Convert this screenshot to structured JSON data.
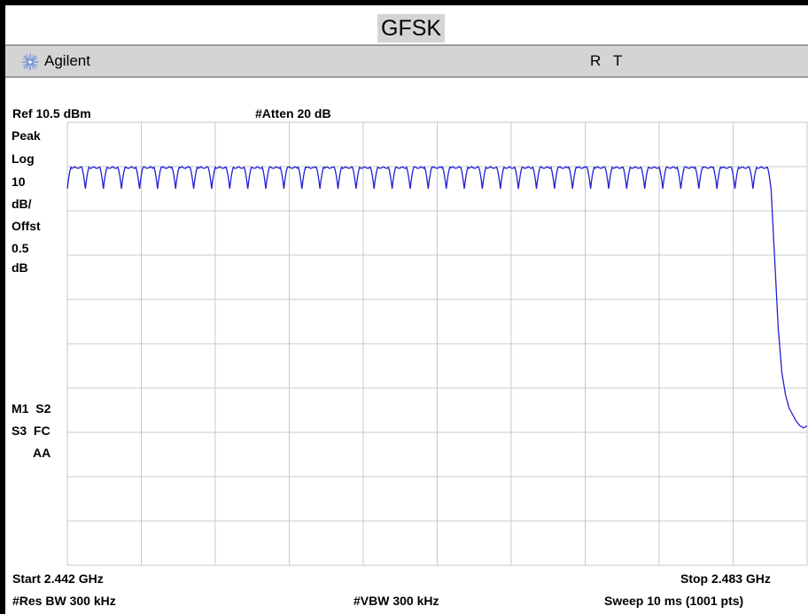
{
  "title": "GFSK",
  "brand": {
    "name": "Agilent",
    "icon": "agilent-spark-icon"
  },
  "status": {
    "r": "R",
    "t": "T"
  },
  "header": {
    "ref_level": "Ref 10.5 dBm",
    "atten": "#Atten 20 dB"
  },
  "left_panel": {
    "detector": "Peak",
    "scale_type": "Log",
    "scale_value": "10",
    "scale_unit": "dB/",
    "offset_label": "Offst",
    "offset_value": "0.5",
    "offset_unit": "dB",
    "line1": "M1  S2",
    "line2": "S3  FC",
    "line3": "AA"
  },
  "footer": {
    "start": "Start 2.442 GHz",
    "stop": "Stop 2.483 GHz",
    "res_bw": "#Res BW 300 kHz",
    "vbw": "#VBW 300 kHz",
    "sweep": "Sweep 10 ms (1001 pts)"
  },
  "colors": {
    "trace": "#1f1fd6",
    "grid": "#c8c8c8",
    "background": "#ffffff",
    "bar": "#d4d4d4"
  },
  "chart_data": {
    "type": "line",
    "title": "GFSK",
    "xlabel": "",
    "ylabel": "",
    "x_unit": "GHz",
    "y_unit": "dBm",
    "xlim": [
      2.442,
      2.483
    ],
    "ylim": [
      -89.5,
      10.5
    ],
    "grid": true,
    "x_divisions": 10,
    "y_divisions": 10,
    "series": [
      {
        "comb": {
          "first_channel_ghz": 2.4425,
          "channel_spacing_ghz": 0.001,
          "channel_count": 39,
          "peak_dbm": 0.5,
          "valley_dbm": -4.5
        },
        "rolloff": {
          "x": [
            2.481,
            2.4812,
            2.4814,
            2.4816,
            2.4818,
            2.482,
            2.4822,
            2.4824,
            2.4826,
            2.4828,
            2.483
          ],
          "y": [
            0.5,
            -20,
            -36,
            -46,
            -51,
            -54,
            -55.5,
            -57,
            -58,
            -58.5,
            -58
          ]
        }
      }
    ]
  }
}
